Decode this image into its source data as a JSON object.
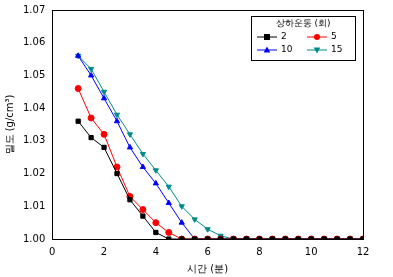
{
  "chart_data": {
    "type": "line",
    "x_label": "시간 (분)",
    "y_label": "밀도 (g/cm³)",
    "legend_title": "상하운동 (회)",
    "x": [
      1,
      1.5,
      2,
      2.5,
      3,
      3.5,
      4,
      4.5,
      5,
      5.5,
      6,
      6.5,
      7,
      7.5,
      8,
      8.5,
      9,
      9.5,
      10,
      10.5,
      11,
      11.5,
      12
    ],
    "series": [
      {
        "name": "2",
        "color": "#000000",
        "marker": "square",
        "values": [
          1.036,
          1.031,
          1.028,
          1.02,
          1.012,
          1.007,
          1.002,
          1.0,
          1.0,
          1.0,
          1.0,
          1.0,
          1.0,
          1.0,
          1.0,
          1.0,
          1.0,
          1.0,
          1.0,
          1.0,
          1.0,
          1.0,
          1.0
        ]
      },
      {
        "name": "5",
        "color": "#ff0000",
        "marker": "circle",
        "values": [
          1.046,
          1.037,
          1.032,
          1.022,
          1.013,
          1.009,
          1.005,
          1.002,
          1.0,
          1.0,
          1.0,
          1.0,
          1.0,
          1.0,
          1.0,
          1.0,
          1.0,
          1.0,
          1.0,
          1.0,
          1.0,
          1.0,
          1.0
        ]
      },
      {
        "name": "10",
        "color": "#0000ff",
        "marker": "triangle",
        "values": [
          1.056,
          1.05,
          1.043,
          1.036,
          1.028,
          1.022,
          1.017,
          1.011,
          1.005,
          1.0,
          1.0,
          1.0,
          1.0,
          1.0,
          1.0,
          1.0,
          1.0,
          1.0,
          1.0,
          1.0,
          1.0,
          1.0,
          1.0
        ]
      },
      {
        "name": "15",
        "color": "#008b8b",
        "marker": "triangle_down",
        "values": [
          1.056,
          1.052,
          1.045,
          1.038,
          1.032,
          1.026,
          1.021,
          1.016,
          1.01,
          1.006,
          1.003,
          1.001,
          1.0,
          1.0,
          1.0,
          1.0,
          1.0,
          1.0,
          1.0,
          1.0,
          1.0,
          1.0,
          1.0
        ]
      }
    ],
    "xlim": [
      0,
      12
    ],
    "xticks": [
      0,
      2,
      4,
      6,
      8,
      10,
      12
    ],
    "ylim": [
      1.0,
      1.07
    ],
    "yticks": [
      {
        "value": 1.0,
        "label": "1.00"
      },
      {
        "value": 1.01,
        "label": "1.01"
      },
      {
        "value": 1.02,
        "label": "1.02"
      },
      {
        "value": 1.03,
        "label": "1.03"
      },
      {
        "value": 1.04,
        "label": "1.04"
      },
      {
        "value": 1.05,
        "label": "1.05"
      },
      {
        "value": 1.06,
        "label": "1.06"
      },
      {
        "value": 1.07,
        "label": "1.07"
      }
    ],
    "grid": false,
    "legend": "upper right"
  }
}
